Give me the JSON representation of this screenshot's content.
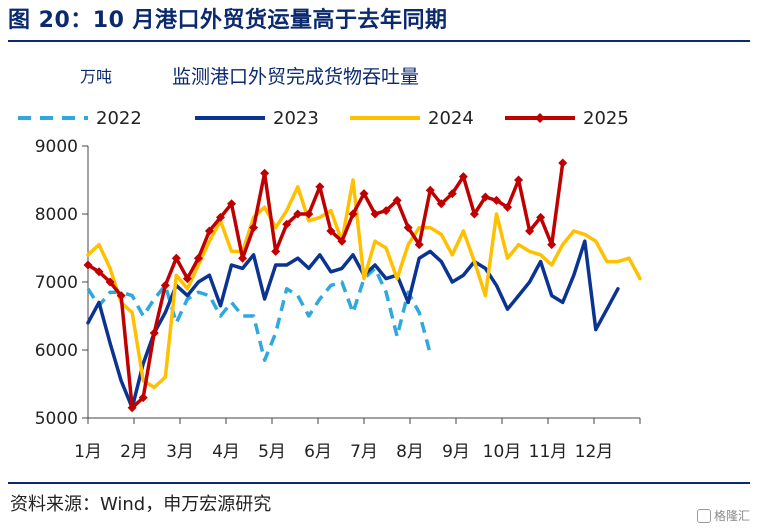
{
  "figure": {
    "title": "图 20：10 月港口外贸货运量高于去年同期",
    "source": "资料来源：Wind，申万宏源研究",
    "watermark": "格隆汇"
  },
  "chart_data": {
    "type": "line",
    "title": "监测港口外贸完成货物吞吐量",
    "unit": "万吨",
    "xlabel": "",
    "ylabel": "",
    "x_tick_labels": [
      "1月",
      "2月",
      "3月",
      "4月",
      "5月",
      "6月",
      "7月",
      "8月",
      "9月",
      "10月",
      "11月",
      "12月"
    ],
    "ylim": [
      5000,
      9000
    ],
    "yticks": [
      5000,
      6000,
      7000,
      8000,
      9000
    ],
    "grid": false,
    "legend_position": "top",
    "series": [
      {
        "name": "2022",
        "color": "#2fa8e0",
        "style": "dashed",
        "values": [
          6900,
          6650,
          6850,
          6850,
          6800,
          6500,
          6750,
          6950,
          6400,
          6750,
          6850,
          6800,
          6500,
          6700,
          6500,
          6500,
          5850,
          6250,
          6900,
          6800,
          6500,
          6750,
          6950,
          7000,
          6550,
          7050,
          7200,
          6850,
          6200,
          6850,
          6550,
          5950
        ]
      },
      {
        "name": "2023",
        "color": "#0b3391",
        "style": "solid",
        "values": [
          6400,
          6700,
          6100,
          5550,
          5150,
          5800,
          6250,
          6550,
          6950,
          6800,
          7000,
          7100,
          6650,
          7250,
          7200,
          7400,
          6750,
          7250,
          7250,
          7350,
          7200,
          7400,
          7150,
          7200,
          7400,
          7100,
          7250,
          7050,
          7100,
          6700,
          7350,
          7450,
          7300,
          7000,
          7100,
          7300,
          7200,
          6950,
          6600,
          6800,
          7000,
          7300,
          6800,
          6700,
          7100,
          7600,
          6300,
          6600,
          6900
        ]
      },
      {
        "name": "2024",
        "color": "#ffc000",
        "style": "solid",
        "values": [
          7400,
          7550,
          7200,
          6700,
          6550,
          5550,
          5450,
          5600,
          7100,
          6900,
          7250,
          7600,
          7900,
          7450,
          7450,
          7950,
          8100,
          7800,
          8050,
          8400,
          7900,
          7950,
          8050,
          7600,
          8500,
          7050,
          7600,
          7500,
          7050,
          7550,
          7800,
          7800,
          7700,
          7400,
          7750,
          7300,
          6800,
          8000,
          7350,
          7550,
          7450,
          7400,
          7250,
          7550,
          7750,
          7700,
          7600,
          7300,
          7300,
          7350,
          7050
        ]
      },
      {
        "name": "2025",
        "color": "#c00000",
        "style": "solid",
        "values": [
          7250,
          7150,
          7000,
          6800,
          5150,
          5300,
          6250,
          6950,
          7350,
          7050,
          7350,
          7750,
          7950,
          8150,
          7350,
          7800,
          8600,
          7450,
          7850,
          8000,
          8000,
          8400,
          7750,
          7600,
          8000,
          8300,
          8000,
          8050,
          8200,
          7800,
          7550,
          8350,
          8150,
          8300,
          8550,
          8000,
          8250,
          8200,
          8100,
          8500,
          7750,
          7950,
          7550,
          8750
        ]
      }
    ]
  }
}
